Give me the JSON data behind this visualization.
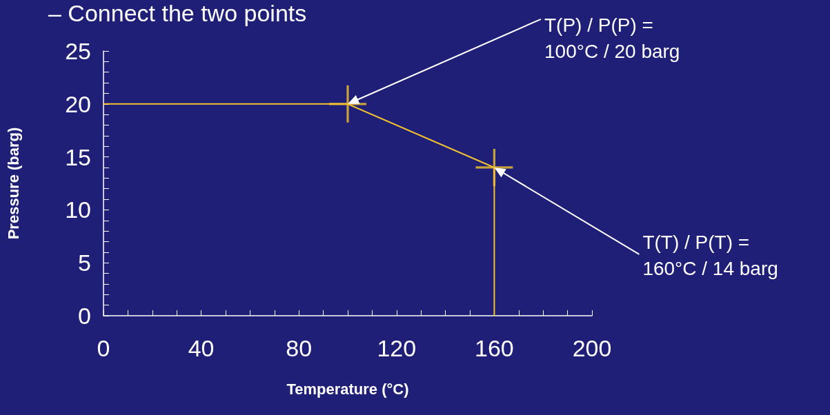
{
  "chart_data": {
    "type": "line",
    "title": "– Connect the two points",
    "xlabel": "Temperature (°C)",
    "ylabel": "Pressure (barg)",
    "xlim": [
      0,
      200
    ],
    "ylim": [
      0,
      25
    ],
    "xticks": [
      0,
      {
        "value": 10,
        "label": null
      },
      {
        "value": 20,
        "label": null
      },
      {
        "value": 30,
        "label": null
      },
      40,
      {
        "value": 50,
        "label": null
      },
      {
        "value": 60,
        "label": null
      },
      {
        "value": 70,
        "label": null
      },
      80,
      {
        "value": 90,
        "label": null
      },
      {
        "value": 100,
        "label": null
      },
      {
        "value": 110,
        "label": null
      },
      120,
      {
        "value": 130,
        "label": null
      },
      {
        "value": 140,
        "label": null
      },
      {
        "value": 150,
        "label": null
      },
      160,
      {
        "value": 170,
        "label": null
      },
      {
        "value": 180,
        "label": null
      },
      {
        "value": 190,
        "label": null
      },
      200
    ],
    "yticks": [
      0,
      {
        "value": 1,
        "label": null
      },
      {
        "value": 2,
        "label": null
      },
      {
        "value": 3,
        "label": null
      },
      {
        "value": 4,
        "label": null
      },
      5,
      {
        "value": 6,
        "label": null
      },
      {
        "value": 7,
        "label": null
      },
      {
        "value": 8,
        "label": null
      },
      {
        "value": 9,
        "label": null
      },
      10,
      {
        "value": 11,
        "label": null
      },
      {
        "value": 12,
        "label": null
      },
      {
        "value": 13,
        "label": null
      },
      {
        "value": 14,
        "label": null
      },
      15,
      {
        "value": 16,
        "label": null
      },
      {
        "value": 17,
        "label": null
      },
      {
        "value": 18,
        "label": null
      },
      {
        "value": 19,
        "label": null
      },
      20,
      {
        "value": 21,
        "label": null
      },
      {
        "value": 22,
        "label": null
      },
      {
        "value": 23,
        "label": null
      },
      {
        "value": 24,
        "label": null
      },
      25
    ],
    "grid": false,
    "series": [
      {
        "type": "line",
        "color": "#f2c22e",
        "marker": "none",
        "line_style": "solid",
        "x": [
          0,
          100,
          160,
          160
        ],
        "values": [
          20,
          20,
          14,
          0
        ]
      },
      {
        "type": "scatter",
        "color": "#f2c22e",
        "marker": "cross",
        "x": [
          100,
          160
        ],
        "values": [
          20,
          14
        ]
      }
    ],
    "annotations": [
      "T(P) / P(P) =\n100°C / 20 barg",
      "T(T) / P(T) =\n160°C / 14 barg"
    ]
  }
}
